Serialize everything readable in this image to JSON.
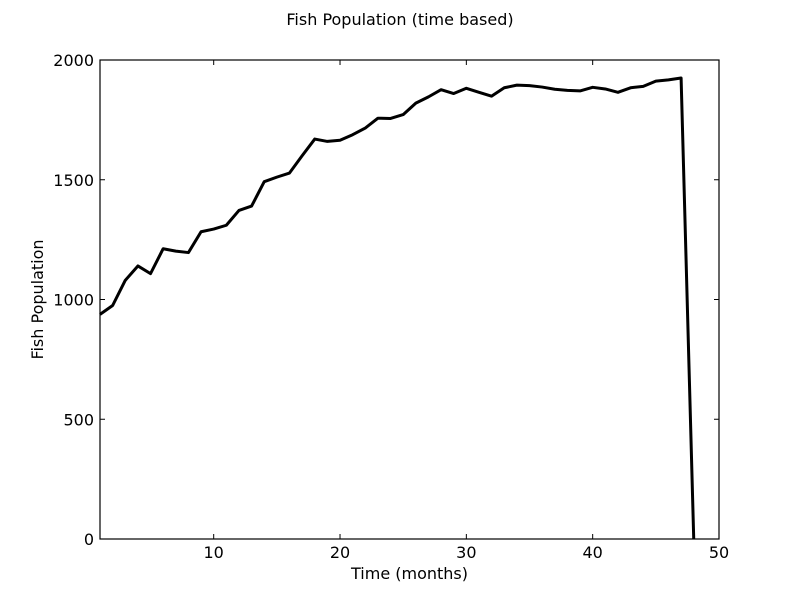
{
  "chart_data": {
    "type": "line",
    "title": "Fish Population (time based)",
    "xlabel": "Time (months)",
    "ylabel": "Fish Population",
    "xlim": [
      1,
      50
    ],
    "ylim": [
      0,
      2000
    ],
    "x_ticks": [
      10,
      20,
      30,
      40,
      50
    ],
    "y_ticks": [
      0,
      500,
      1000,
      1500,
      2000
    ],
    "grid": false,
    "line_color": "#000000",
    "series": [
      {
        "x": [
          1,
          2,
          3,
          4,
          5,
          6,
          7,
          8,
          9,
          10,
          11,
          12,
          13,
          14,
          15,
          16,
          17,
          18,
          19,
          20,
          21,
          22,
          23,
          24,
          25,
          26,
          27,
          28,
          29,
          30,
          31,
          32,
          33,
          34,
          35,
          36,
          37,
          38,
          39,
          40,
          41,
          42,
          43,
          44,
          45,
          46,
          47,
          48
        ],
        "values": [
          938,
          975,
          1080,
          1140,
          1108,
          1212,
          1202,
          1196,
          1283,
          1294,
          1310,
          1372,
          1390,
          1492,
          1511,
          1528,
          1600,
          1670,
          1660,
          1665,
          1688,
          1716,
          1757,
          1756,
          1772,
          1820,
          1846,
          1876,
          1860,
          1882,
          1865,
          1849,
          1884,
          1895,
          1893,
          1887,
          1878,
          1873,
          1871,
          1886,
          1879,
          1865,
          1884,
          1890,
          1912,
          1917,
          1925,
          0
        ]
      }
    ]
  }
}
